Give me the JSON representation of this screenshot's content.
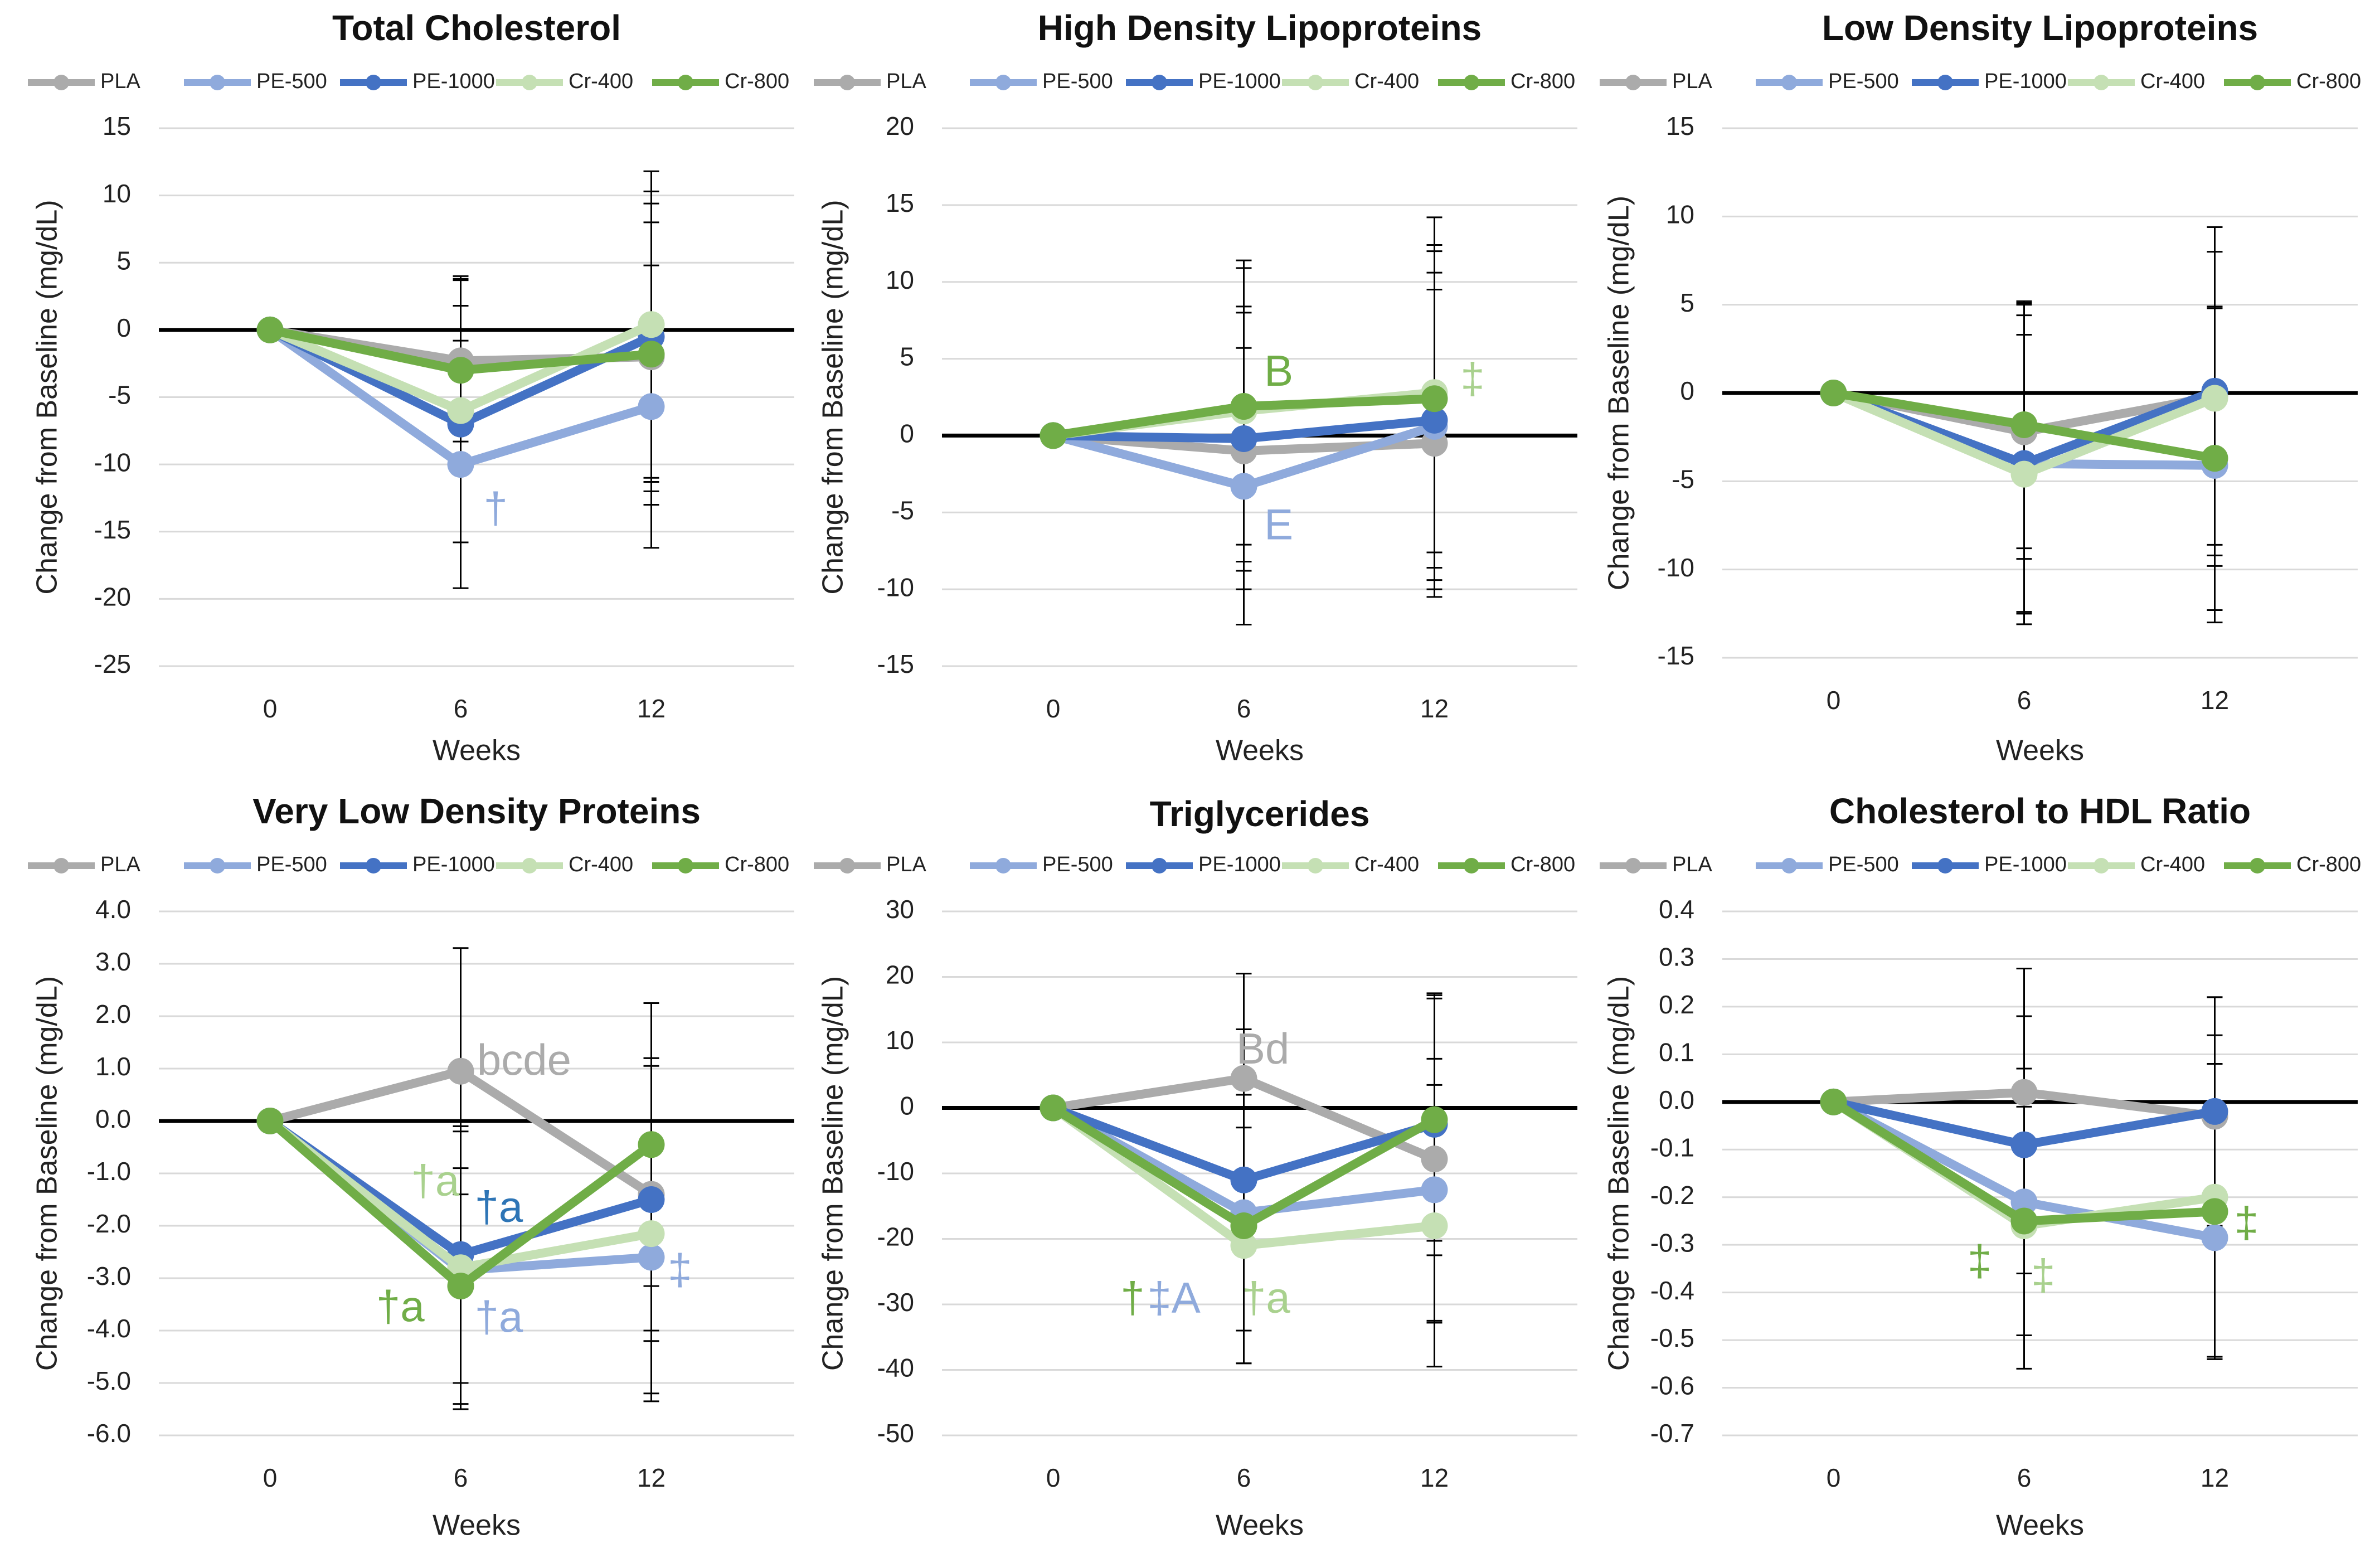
{
  "figure": {
    "legend_entries": [
      "PLA",
      "PE-500",
      "PE-1000",
      "Cr-400",
      "Cr-800"
    ],
    "series_colors": {
      "PLA": "#ABABAB",
      "PE-500": "#8FAADC",
      "PE-1000": "#4472C4",
      "Cr-400": "#C5E0B4",
      "Cr-800": "#70AD47"
    }
  },
  "chart_data": [
    {
      "type": "line",
      "title": "Total Cholesterol",
      "xlabel": "Weeks",
      "ylabel": "Change from Baseline (mg/dL)",
      "x": [
        0,
        6,
        12
      ],
      "ylim": [
        -25,
        15
      ],
      "yticks": [
        "15",
        "10",
        "5",
        "0",
        "-5",
        "-10",
        "-15",
        "-20",
        "-25"
      ],
      "ytick_values": [
        15,
        10,
        5,
        0,
        -5,
        -10,
        -15,
        -20,
        -25
      ],
      "series": [
        {
          "name": "PLA",
          "values": [
            0,
            -2.3,
            -2.0
          ],
          "errors": [
            0,
            6.0,
            10.0
          ]
        },
        {
          "name": "PE-500",
          "values": [
            0,
            -10.0,
            -5.7
          ],
          "errors": [
            0,
            9.2,
            10.5
          ]
        },
        {
          "name": "PE-1000",
          "values": [
            0,
            -7.0,
            -0.5
          ],
          "errors": [
            0,
            8.8,
            10.8
          ]
        },
        {
          "name": "Cr-400",
          "values": [
            0,
            -6.0,
            0.4
          ],
          "errors": [
            0,
            9.8,
            11.4
          ]
        },
        {
          "name": "Cr-800",
          "values": [
            0,
            -3.0,
            -1.8
          ],
          "errors": [
            0,
            7.0,
            11.2
          ]
        }
      ],
      "annotations": [
        {
          "text": "†",
          "color": "#8FAADC",
          "x": 7.1,
          "y": -13.5
        }
      ]
    },
    {
      "type": "line",
      "title": "High Density Lipoproteins",
      "xlabel": "Weeks",
      "ylabel": "Change from Baseline (mg/dL)",
      "x": [
        0,
        6,
        12
      ],
      "ylim": [
        -15,
        20
      ],
      "yticks": [
        "20",
        "15",
        "10",
        "5",
        "0",
        "-5",
        "-10",
        "-15"
      ],
      "ytick_values": [
        20,
        15,
        10,
        5,
        0,
        -5,
        -10,
        -15
      ],
      "series": [
        {
          "name": "PLA",
          "values": [
            0,
            -1.0,
            -0.5
          ],
          "errors": [
            0,
            9.0,
            10.0
          ]
        },
        {
          "name": "PE-500",
          "values": [
            0,
            -3.3,
            0.6
          ],
          "errors": [
            0,
            9.0,
            10.0
          ]
        },
        {
          "name": "PE-1000",
          "values": [
            0,
            -0.2,
            1.0
          ],
          "errors": [
            0,
            8.6,
            11.0
          ]
        },
        {
          "name": "Cr-400",
          "values": [
            0,
            1.6,
            2.8
          ],
          "errors": [
            0,
            9.8,
            11.4
          ]
        },
        {
          "name": "Cr-800",
          "values": [
            0,
            1.9,
            2.4
          ],
          "errors": [
            0,
            9.0,
            10.0
          ]
        }
      ],
      "annotations": [
        {
          "text": "B",
          "color": "#70AD47",
          "x": 7.1,
          "y": 4.0
        },
        {
          "text": "E",
          "color": "#8FAADC",
          "x": 7.1,
          "y": -6.0
        },
        {
          "text": "‡",
          "color": "#A9D18E",
          "x": 13.2,
          "y": 3.5
        }
      ]
    },
    {
      "type": "line",
      "title": "Low Density Lipoproteins",
      "xlabel": "Weeks",
      "ylabel": "Change from Baseline (mg/dL)",
      "x": [
        0,
        6,
        12
      ],
      "ylim": [
        -15,
        15
      ],
      "yticks": [
        "15",
        "10",
        "5",
        "0",
        "-5",
        "-10",
        "-15"
      ],
      "ytick_values": [
        15,
        10,
        5,
        0,
        -5,
        -10,
        -15
      ],
      "series": [
        {
          "name": "PLA",
          "values": [
            0,
            -2.2,
            -0.2
          ],
          "errors": [
            0,
            7.2,
            9.6
          ]
        },
        {
          "name": "PE-500",
          "values": [
            0,
            -4.0,
            -4.1
          ],
          "errors": [
            0,
            8.4,
            8.9
          ]
        },
        {
          "name": "PE-1000",
          "values": [
            0,
            -4.0,
            0.1
          ],
          "errors": [
            0,
            9.1,
            9.3
          ]
        },
        {
          "name": "Cr-400",
          "values": [
            0,
            -4.6,
            -0.3
          ],
          "errors": [
            0,
            7.9,
            8.3
          ]
        },
        {
          "name": "Cr-800",
          "values": [
            0,
            -1.8,
            -3.7
          ],
          "errors": [
            0,
            7.0,
            8.6
          ]
        }
      ],
      "annotations": []
    },
    {
      "type": "line",
      "title": "Very Low Density Proteins",
      "xlabel": "Weeks",
      "ylabel": "Change from Baseline (mg/dL)",
      "x": [
        0,
        6,
        12
      ],
      "ylim": [
        -6.0,
        4.0
      ],
      "yticks": [
        "4.0",
        "3.0",
        "2.0",
        "1.0",
        "0.0",
        "-1.0",
        "-2.0",
        "-3.0",
        "-4.0",
        "-5.0",
        "-6.0"
      ],
      "ytick_values": [
        4,
        3,
        2,
        1,
        0,
        -1,
        -2,
        -3,
        -4,
        -5,
        -6
      ],
      "series": [
        {
          "name": "PLA",
          "values": [
            0,
            0.95,
            -1.4
          ],
          "errors": [
            0,
            2.35,
            2.6
          ]
        },
        {
          "name": "PE-500",
          "values": [
            0,
            -2.85,
            -2.6
          ],
          "errors": [
            0,
            2.65,
            2.6
          ]
        },
        {
          "name": "PE-1000",
          "values": [
            0,
            -2.55,
            -1.5
          ],
          "errors": [
            0,
            2.45,
            2.7
          ]
        },
        {
          "name": "Cr-400",
          "values": [
            0,
            -2.8,
            -2.15
          ],
          "errors": [
            0,
            2.7,
            3.2
          ]
        },
        {
          "name": "Cr-800",
          "values": [
            0,
            -3.15,
            -0.45
          ],
          "errors": [
            0,
            2.25,
            2.7
          ]
        }
      ],
      "annotations": [
        {
          "text": "bcde",
          "color": "#ABABAB",
          "x": 8.0,
          "y": 1.1
        },
        {
          "text": "†a",
          "color": "#A9D18E",
          "x": 5.2,
          "y": -1.2
        },
        {
          "text": "†a",
          "color": "#2E75B6",
          "x": 7.2,
          "y": -1.7
        },
        {
          "text": "†a",
          "color": "#70AD47",
          "x": 4.1,
          "y": -3.6
        },
        {
          "text": "†a",
          "color": "#8FAADC",
          "x": 7.2,
          "y": -3.8
        },
        {
          "text": "‡",
          "color": "#8FAADC",
          "x": 12.9,
          "y": -2.9
        }
      ]
    },
    {
      "type": "line",
      "title": "Triglycerides",
      "xlabel": "Weeks",
      "ylabel": "Change from Baseline (mg/dL)",
      "x": [
        0,
        6,
        12
      ],
      "ylim": [
        -50,
        30
      ],
      "yticks": [
        "30",
        "20",
        "10",
        "0",
        "-10",
        "-20",
        "-30",
        "-40",
        "-50"
      ],
      "ytick_values": [
        30,
        20,
        10,
        0,
        -10,
        -20,
        -30,
        -40,
        -50
      ],
      "series": [
        {
          "name": "PLA",
          "values": [
            0,
            4.5,
            -7.8
          ],
          "errors": [
            0,
            16.0,
            25.0
          ]
        },
        {
          "name": "PE-500",
          "values": [
            0,
            -16.0,
            -12.5
          ],
          "errors": [
            0,
            18.0,
            20.0
          ]
        },
        {
          "name": "PE-1000",
          "values": [
            0,
            -11.0,
            -2.5
          ],
          "errors": [
            0,
            23.0,
            20.0
          ]
        },
        {
          "name": "Cr-400",
          "values": [
            0,
            -21.0,
            -18.0
          ],
          "errors": [
            0,
            18.0,
            21.5
          ]
        },
        {
          "name": "Cr-800",
          "values": [
            0,
            -18.0,
            -1.8
          ],
          "errors": [
            0,
            21.0,
            18.5
          ]
        }
      ],
      "annotations": [
        {
          "text": "Bd",
          "color": "#ABABAB",
          "x": 6.6,
          "y": 8.5
        },
        {
          "text": "†",
          "color": "#70AD47",
          "x": 2.5,
          "y": -29.5
        },
        {
          "text": "‡A",
          "color": "#8FAADC",
          "x": 3.8,
          "y": -29.5
        },
        {
          "text": "†a",
          "color": "#A9D18E",
          "x": 6.7,
          "y": -29.5
        }
      ]
    },
    {
      "type": "line",
      "title": "Cholesterol to HDL Ratio",
      "xlabel": "Weeks",
      "ylabel": "Change from Baseline (mg/dL)",
      "x": [
        0,
        6,
        12
      ],
      "ylim": [
        -0.7,
        0.4
      ],
      "yticks": [
        "0.4",
        "0.3",
        "0.2",
        "0.1",
        "0.0",
        "-0.1",
        "-0.2",
        "-0.3",
        "-0.4",
        "-0.5",
        "-0.6",
        "-0.7"
      ],
      "ytick_values": [
        0.4,
        0.3,
        0.2,
        0.1,
        0.0,
        -0.1,
        -0.2,
        -0.3,
        -0.4,
        -0.5,
        -0.6,
        -0.7
      ],
      "series": [
        {
          "name": "PLA",
          "values": [
            0,
            0.02,
            -0.03
          ],
          "errors": [
            0,
            0.26,
            0.25
          ]
        },
        {
          "name": "PE-500",
          "values": [
            0,
            -0.21,
            -0.285
          ],
          "errors": [
            0,
            0.28,
            0.25
          ]
        },
        {
          "name": "PE-1000",
          "values": [
            0,
            -0.09,
            -0.02
          ],
          "errors": [
            0,
            0.27,
            0.24
          ]
        },
        {
          "name": "Cr-400",
          "values": [
            0,
            -0.26,
            -0.2
          ],
          "errors": [
            0,
            0.3,
            0.34
          ]
        },
        {
          "name": "Cr-800",
          "values": [
            0,
            -0.25,
            -0.23
          ],
          "errors": [
            0,
            0.24,
            0.31
          ]
        }
      ],
      "annotations": [
        {
          "text": "‡",
          "color": "#70AD47",
          "x": 4.6,
          "y": -0.34
        },
        {
          "text": "‡",
          "color": "#A9D18E",
          "x": 6.6,
          "y": -0.37
        },
        {
          "text": "‡",
          "color": "#70AD47",
          "x": 13.0,
          "y": -0.26
        }
      ]
    }
  ]
}
